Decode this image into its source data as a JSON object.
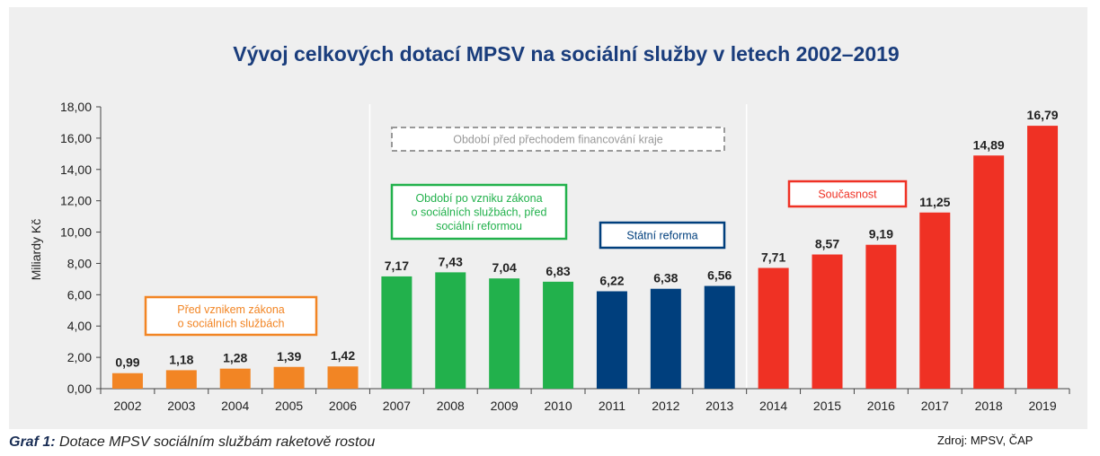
{
  "chart_data": {
    "type": "bar",
    "title": "Vývoj celkových dotací MPSV na sociální služby v letech  2002–2019",
    "ylabel": "Miliardy Kč",
    "xlabel": "",
    "ylim": [
      0,
      18
    ],
    "yticks": [
      "0,00",
      "2,00",
      "4,00",
      "6,00",
      "8,00",
      "10,00",
      "12,00",
      "14,00",
      "16,00",
      "18,00"
    ],
    "grid": false,
    "categories": [
      "2002",
      "2003",
      "2004",
      "2005",
      "2006",
      "2007",
      "2008",
      "2009",
      "2010",
      "2011",
      "2012",
      "2013",
      "2014",
      "2015",
      "2016",
      "2017",
      "2018",
      "2019"
    ],
    "values": [
      0.99,
      1.18,
      1.28,
      1.39,
      1.42,
      7.17,
      7.43,
      7.04,
      6.83,
      6.22,
      6.38,
      6.56,
      7.71,
      8.57,
      9.19,
      11.25,
      14.89,
      16.79
    ],
    "value_labels": [
      "0,99",
      "1,18",
      "1,28",
      "1,39",
      "1,42",
      "7,17",
      "7,43",
      "7,04",
      "6,83",
      "6,22",
      "6,38",
      "6,56",
      "7,71",
      "8,57",
      "9,19",
      "11,25",
      "14,89",
      "16,79"
    ],
    "bar_colors": [
      "#f28524",
      "#f28524",
      "#f28524",
      "#f28524",
      "#f28524",
      "#22b14c",
      "#22b14c",
      "#22b14c",
      "#22b14c",
      "#003f7d",
      "#003f7d",
      "#003f7d",
      "#ef3124",
      "#ef3124",
      "#ef3124",
      "#ef3124",
      "#ef3124",
      "#ef3124"
    ],
    "annotations": [
      {
        "lines": [
          "Před vznikem zákona",
          "o sociálních službách"
        ],
        "color": "#f28524",
        "style": "solid"
      },
      {
        "lines": [
          "Období před přechodem financování kraje"
        ],
        "color": "#999999",
        "style": "dashed"
      },
      {
        "lines": [
          "Období po vzniku zákona",
          "o sociálních službách, před",
          "sociální reformou"
        ],
        "color": "#22b14c",
        "style": "solid"
      },
      {
        "lines": [
          "Státní reforma"
        ],
        "color": "#003f7d",
        "style": "solid"
      },
      {
        "lines": [
          "Současnost"
        ],
        "color": "#ef3124",
        "style": "solid"
      }
    ]
  },
  "caption": {
    "label": "Graf 1:",
    "text": " Dotace MPSV sociálním službám raketově rostou"
  },
  "source": "Zdroj: MPSV, ČAP"
}
